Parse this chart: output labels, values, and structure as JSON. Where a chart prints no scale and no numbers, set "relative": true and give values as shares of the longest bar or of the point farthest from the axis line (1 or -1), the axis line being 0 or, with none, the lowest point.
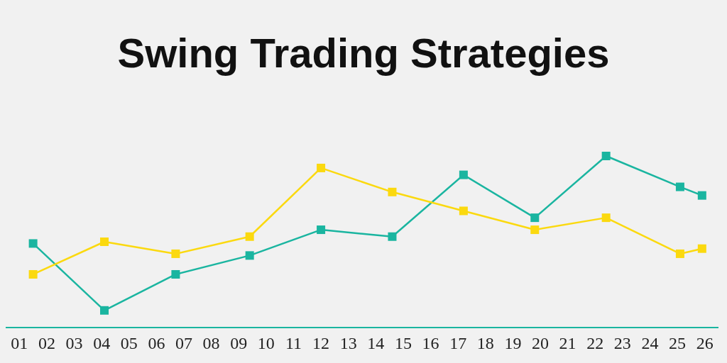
{
  "chart_data": {
    "type": "line",
    "title": "Swing Trading Strategies",
    "relative": true,
    "marker": "square",
    "xlim": [
      0.5,
      26.5
    ],
    "xticks": [
      {
        "value": 1,
        "label": "01"
      },
      {
        "value": 2,
        "label": "02"
      },
      {
        "value": 3,
        "label": "03"
      },
      {
        "value": 4,
        "label": "04"
      },
      {
        "value": 5,
        "label": "05"
      },
      {
        "value": 6,
        "label": "06"
      },
      {
        "value": 7,
        "label": "07"
      },
      {
        "value": 8,
        "label": "08"
      },
      {
        "value": 9,
        "label": "09"
      },
      {
        "value": 10,
        "label": "10"
      },
      {
        "value": 11,
        "label": "11"
      },
      {
        "value": 12,
        "label": "12"
      },
      {
        "value": 13,
        "label": "13"
      },
      {
        "value": 14,
        "label": "14"
      },
      {
        "value": 15,
        "label": "15"
      },
      {
        "value": 16,
        "label": "16"
      },
      {
        "value": 17,
        "label": "17"
      },
      {
        "value": 18,
        "label": "18"
      },
      {
        "value": 19,
        "label": "19"
      },
      {
        "value": 20,
        "label": "20"
      },
      {
        "value": 21,
        "label": "21"
      },
      {
        "value": 22,
        "label": "22"
      },
      {
        "value": 23,
        "label": "23"
      },
      {
        "value": 24,
        "label": "24"
      },
      {
        "value": 25,
        "label": "25"
      },
      {
        "value": 26,
        "label": "26"
      }
    ],
    "series": [
      {
        "color": "#1ab5a0",
        "x": [
          1.5,
          4.1,
          6.7,
          9.4,
          12.0,
          14.6,
          17.2,
          19.8,
          22.4,
          25.1,
          25.9
        ],
        "values": [
          0.49,
          0.1,
          0.31,
          0.42,
          0.57,
          0.53,
          0.89,
          0.64,
          1,
          0.82,
          0.77
        ]
      },
      {
        "color": "#fbd90f",
        "x": [
          1.5,
          4.1,
          6.7,
          9.4,
          12.0,
          14.6,
          17.2,
          19.8,
          22.4,
          25.1,
          25.9
        ],
        "values": [
          0.31,
          0.5,
          0.43,
          0.53,
          0.93,
          0.79,
          0.68,
          0.57,
          0.64,
          0.43,
          0.46
        ]
      }
    ]
  }
}
